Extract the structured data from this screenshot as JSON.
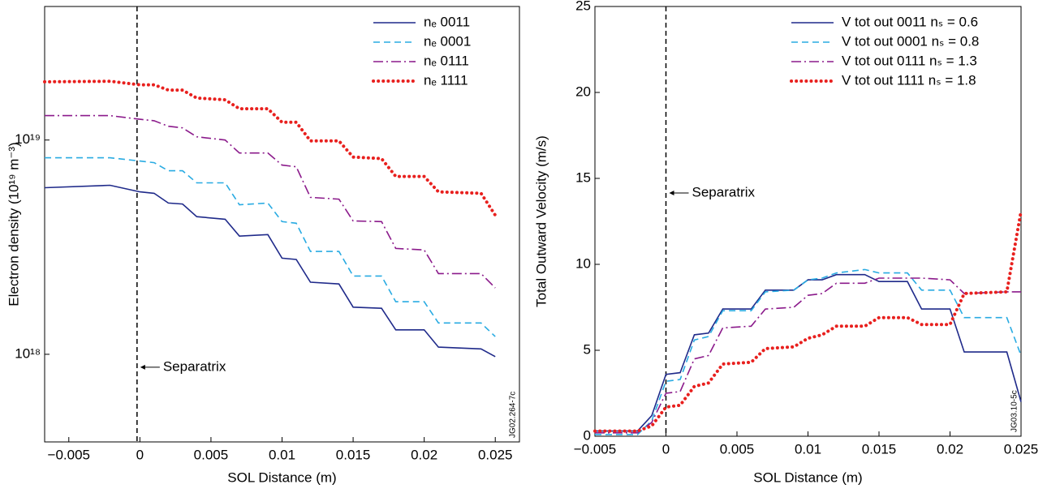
{
  "chart_data": [
    {
      "type": "line",
      "x_label": "SOL Distance (m)",
      "y_label": "Electron density (10¹⁹ m⁻³)",
      "log_y": true,
      "legend": "upper right",
      "note": "JG02.264-7c",
      "annotation": {
        "text": "Separatrix",
        "x": -0.0002,
        "y": 8.7e+17
      },
      "xlim": [
        -0.0067,
        0.0267
      ],
      "xticks": [
        {
          "value": -0.005,
          "label": "−0.005"
        },
        0,
        0.005,
        0.01,
        0.015,
        0.02,
        0.025
      ],
      "ylim": [
        3.9e+17,
        4.2e+19
      ],
      "yticks": [
        {
          "value": 1e+18,
          "label": "10¹⁸"
        },
        {
          "value": 1e+19,
          "label": "10¹⁹"
        }
      ],
      "x": [
        -0.0067,
        -0.0021,
        0,
        0.001,
        0.002,
        0.003,
        0.004,
        0.006,
        0.007,
        0.009,
        0.01,
        0.011,
        0.012,
        0.014,
        0.015,
        0.017,
        0.018,
        0.02,
        0.021,
        0.024,
        0.025
      ],
      "series": [
        {
          "name": "nₑ 0011",
          "color": "#1f2a8a",
          "style": "solid",
          "values": [
            5.99e+18,
            6.15e+18,
            5.73e+18,
            5.64e+18,
            5.08e+18,
            5.03e+18,
            4.39e+18,
            4.27e+18,
            3.56e+18,
            3.62e+18,
            2.81e+18,
            2.77e+18,
            2.17e+18,
            2.13e+18,
            1.66e+18,
            1.64e+18,
            1.3e+18,
            1.3e+18,
            1.08e+18,
            1.06e+18,
            9.75e+17
          ]
        },
        {
          "name": "nₑ 0001",
          "color": "#29abe2",
          "style": "dashed",
          "values": [
            8.26e+18,
            8.26e+18,
            7.98e+18,
            7.84e+18,
            7.19e+18,
            7.19e+18,
            6.31e+18,
            6.31e+18,
            4.99e+18,
            5.08e+18,
            4.16e+18,
            4.09e+18,
            3.02e+18,
            3.02e+18,
            2.32e+18,
            2.32e+18,
            1.76e+18,
            1.76e+18,
            1.4e+18,
            1.4e+18,
            1.21e+18
          ]
        },
        {
          "name": "nₑ 0111",
          "color": "#8b1a8b",
          "style": "dashdot",
          "values": [
            1.3e+19,
            1.3e+19,
            1.25e+19,
            1.23e+19,
            1.16e+19,
            1.14e+19,
            1.035e+19,
            1e+19,
            8.7e+18,
            8.7e+18,
            7.64e+18,
            7.5e+18,
            5.4e+18,
            5.3e+18,
            4.19e+18,
            4.16e+18,
            3.12e+18,
            3.07e+18,
            2.38e+18,
            2.38e+18,
            2.04e+18
          ]
        },
        {
          "name": "nₑ 1111",
          "color": "#e8201e",
          "style": "dotted",
          "values": [
            1.87e+19,
            1.88e+19,
            1.81e+19,
            1.81e+19,
            1.71e+19,
            1.71e+19,
            1.57e+19,
            1.54e+19,
            1.4e+19,
            1.4e+19,
            1.21e+19,
            1.21e+19,
            9.9e+18,
            9.9e+18,
            8.33e+18,
            8.19e+18,
            6.76e+18,
            6.76e+18,
            5.73e+18,
            5.64e+18,
            4.46e+18
          ]
        }
      ]
    },
    {
      "type": "line",
      "x_label": "SOL Distance (m)",
      "y_label": "Total Outward Velocity (m/s)",
      "log_y": false,
      "legend": "upper right",
      "note": "JG03.10-5c",
      "annotation": {
        "text": "Separatrix",
        "x": 0,
        "y": 14.15
      },
      "xlim": [
        -0.005,
        0.025
      ],
      "xticks": [
        {
          "value": -0.005,
          "label": "−0.005"
        },
        0,
        0.005,
        0.01,
        0.015,
        0.02,
        0.025
      ],
      "ylim": [
        0,
        25
      ],
      "yticks": [
        0,
        5,
        10,
        15,
        20,
        25
      ],
      "x": [
        -0.005,
        -0.0025,
        -0.002,
        -0.001,
        0,
        0.001,
        0.002,
        0.003,
        0.004,
        0.006,
        0.007,
        0.009,
        0.01,
        0.011,
        0.012,
        0.014,
        0.015,
        0.017,
        0.018,
        0.02,
        0.021,
        0.024,
        0.025
      ],
      "series": [
        {
          "name": "V tot out 0011 nₛ = 0.6",
          "color": "#1f2a8a",
          "style": "solid",
          "values": [
            0.3,
            0.3,
            0.3,
            1.2,
            3.6,
            3.7,
            5.9,
            6.0,
            7.4,
            7.4,
            8.5,
            8.5,
            9.1,
            9.1,
            9.4,
            9.4,
            9.0,
            9.0,
            7.4,
            7.4,
            4.9,
            4.9,
            2.0
          ]
        },
        {
          "name": "V tot out 0001 nₛ = 0.8",
          "color": "#29abe2",
          "style": "dashed",
          "values": [
            0.1,
            0.1,
            0.1,
            0.9,
            3.2,
            3.3,
            5.6,
            5.8,
            7.3,
            7.3,
            8.4,
            8.5,
            9.1,
            9.2,
            9.5,
            9.7,
            9.5,
            9.5,
            8.5,
            8.5,
            6.9,
            6.9,
            4.7
          ]
        },
        {
          "name": "V tot out 0111 nₛ = 1.3",
          "color": "#8b1a8b",
          "style": "dashdot",
          "values": [
            0.2,
            0.2,
            0.2,
            0.8,
            2.5,
            2.6,
            4.5,
            4.7,
            6.3,
            6.4,
            7.4,
            7.5,
            8.2,
            8.3,
            8.9,
            8.9,
            9.2,
            9.2,
            9.2,
            9.1,
            8.3,
            8.4,
            8.4
          ]
        },
        {
          "name": "V tot out 1111 nₛ = 1.8",
          "color": "#e8201e",
          "style": "dotted",
          "values": [
            0.3,
            0.3,
            0.3,
            0.6,
            1.7,
            1.8,
            2.9,
            3.1,
            4.2,
            4.3,
            5.1,
            5.2,
            5.7,
            5.9,
            6.4,
            6.4,
            6.9,
            6.9,
            6.5,
            6.5,
            8.3,
            8.4,
            13.1
          ]
        }
      ]
    }
  ]
}
